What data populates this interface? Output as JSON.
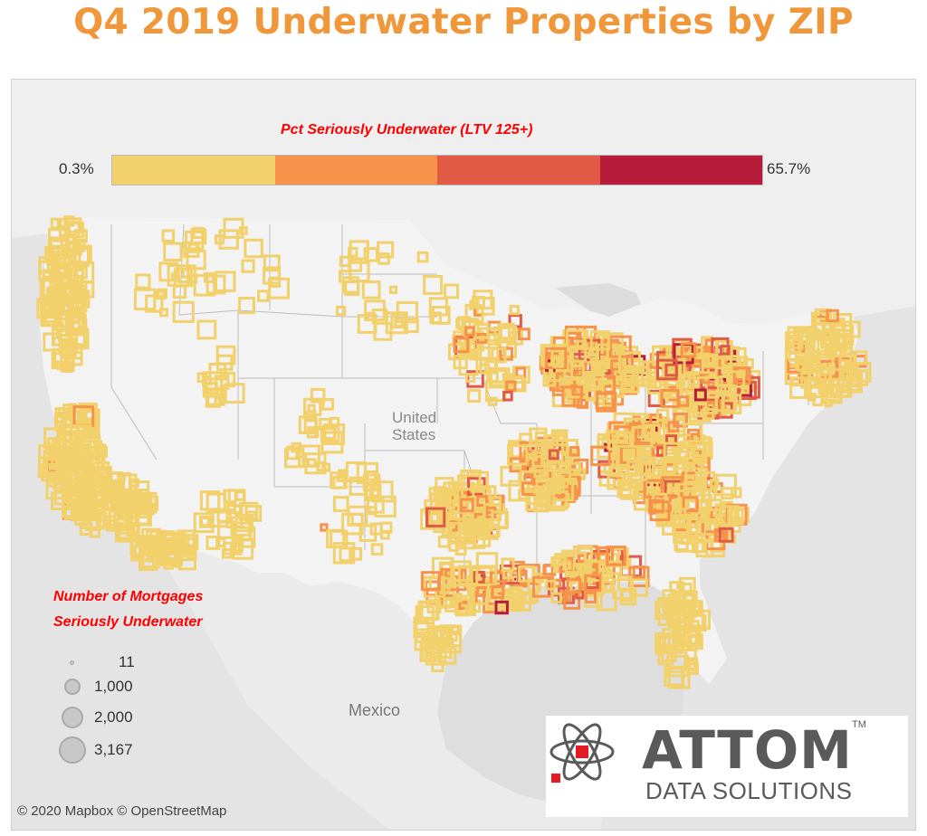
{
  "title": "Q4 2019 Underwater Properties by ZIP",
  "color_legend": {
    "title": "Pct Seriously Underwater (LTV 125+)",
    "min_label": "0.3%",
    "max_label": "65.7%",
    "colors": [
      "#f2d06b",
      "#f7924a",
      "#e05a46",
      "#b71c3a"
    ]
  },
  "size_legend": {
    "title_line1": "Number of Mortgages",
    "title_line2": "Seriously Underwater",
    "entries": [
      {
        "value": "11"
      },
      {
        "value": "1,000"
      },
      {
        "value": "2,000"
      },
      {
        "value": "3,167"
      }
    ]
  },
  "map_labels": {
    "country_us_line1": "United",
    "country_us_line2": "States",
    "country_mexico": "Mexico"
  },
  "attribution": "© 2020 Mapbox  © OpenStreetMap",
  "logo": {
    "name": "ATTOM",
    "tagline": "DATA SOLUTIONS",
    "trademark": "TM"
  }
}
